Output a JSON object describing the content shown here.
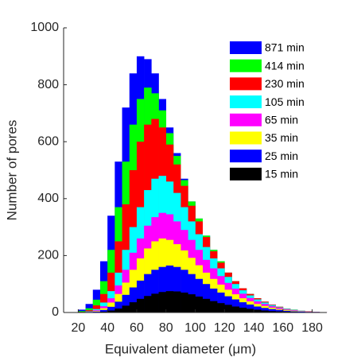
{
  "chart_data": {
    "type": "histogram",
    "xlabel": "Equivalent diameter (μm)",
    "ylabel": "Number of pores",
    "bins": [
      20,
      25,
      30,
      35,
      40,
      45,
      50,
      55,
      60,
      65,
      70,
      75,
      80,
      85,
      90,
      95,
      100,
      105,
      110,
      115,
      120,
      125,
      130,
      135,
      140,
      145,
      150,
      155,
      160,
      165,
      170,
      175,
      180,
      185,
      190
    ],
    "xlim": [
      10,
      190
    ],
    "xticks": [
      20,
      40,
      60,
      80,
      100,
      120,
      140,
      160,
      180
    ],
    "ylim": [
      0,
      1000
    ],
    "yticks": [
      0,
      200,
      400,
      600,
      800,
      1000
    ],
    "legend": "top-right",
    "series": [
      {
        "name": "871 min",
        "color": "#0000ff",
        "values": [
          10,
          30,
          80,
          180,
          340,
          530,
          720,
          840,
          900,
          890,
          840,
          750,
          650,
          560,
          470,
          390,
          330,
          270,
          220,
          180,
          140,
          110,
          85,
          65,
          50,
          38,
          28,
          20,
          14,
          10,
          6,
          4,
          2,
          1
        ]
      },
      {
        "name": "414 min",
        "color": "#00ff00",
        "values": [
          5,
          15,
          45,
          110,
          220,
          370,
          530,
          660,
          750,
          790,
          770,
          710,
          630,
          550,
          465,
          390,
          330,
          270,
          220,
          180,
          140,
          110,
          85,
          65,
          50,
          38,
          28,
          20,
          14,
          10,
          6,
          4,
          2,
          1
        ]
      },
      {
        "name": "230 min",
        "color": "#ff0000",
        "values": [
          2,
          8,
          25,
          65,
          140,
          250,
          380,
          500,
          600,
          660,
          680,
          650,
          590,
          520,
          445,
          375,
          320,
          265,
          215,
          175,
          140,
          110,
          85,
          65,
          50,
          38,
          28,
          20,
          14,
          9,
          6,
          4,
          2,
          1
        ]
      },
      {
        "name": "105 min",
        "color": "#00ffff",
        "values": [
          1,
          4,
          12,
          35,
          75,
          140,
          220,
          300,
          370,
          430,
          470,
          480,
          460,
          420,
          370,
          320,
          275,
          230,
          190,
          155,
          125,
          100,
          78,
          60,
          46,
          35,
          26,
          18,
          13,
          9,
          6,
          3,
          2,
          1
        ]
      },
      {
        "name": "65 min",
        "color": "#ff00ff",
        "values": [
          0,
          2,
          8,
          22,
          50,
          95,
          150,
          210,
          260,
          305,
          335,
          350,
          345,
          320,
          290,
          255,
          220,
          185,
          155,
          128,
          104,
          84,
          66,
          51,
          39,
          30,
          22,
          16,
          11,
          8,
          5,
          3,
          2,
          1
        ]
      },
      {
        "name": "35 min",
        "color": "#ffff00",
        "values": [
          0,
          1,
          5,
          15,
          35,
          65,
          105,
          150,
          190,
          225,
          250,
          260,
          255,
          240,
          218,
          192,
          166,
          140,
          118,
          98,
          80,
          64,
          50,
          39,
          30,
          23,
          17,
          12,
          9,
          6,
          4,
          2,
          1,
          0
        ]
      },
      {
        "name": "25 min",
        "color": "#0000ff",
        "values": [
          0,
          1,
          3,
          9,
          20,
          38,
          62,
          88,
          112,
          135,
          150,
          160,
          165,
          160,
          150,
          135,
          118,
          100,
          84,
          70,
          57,
          46,
          36,
          28,
          21,
          16,
          12,
          9,
          6,
          4,
          3,
          2,
          1,
          0
        ]
      },
      {
        "name": "15 min",
        "color": "#000000",
        "values": [
          0,
          0,
          1,
          3,
          7,
          14,
          24,
          36,
          48,
          58,
          66,
          72,
          75,
          74,
          70,
          64,
          56,
          48,
          40,
          33,
          27,
          21,
          17,
          13,
          10,
          7,
          5,
          4,
          3,
          2,
          1,
          1,
          0,
          0
        ]
      }
    ]
  }
}
